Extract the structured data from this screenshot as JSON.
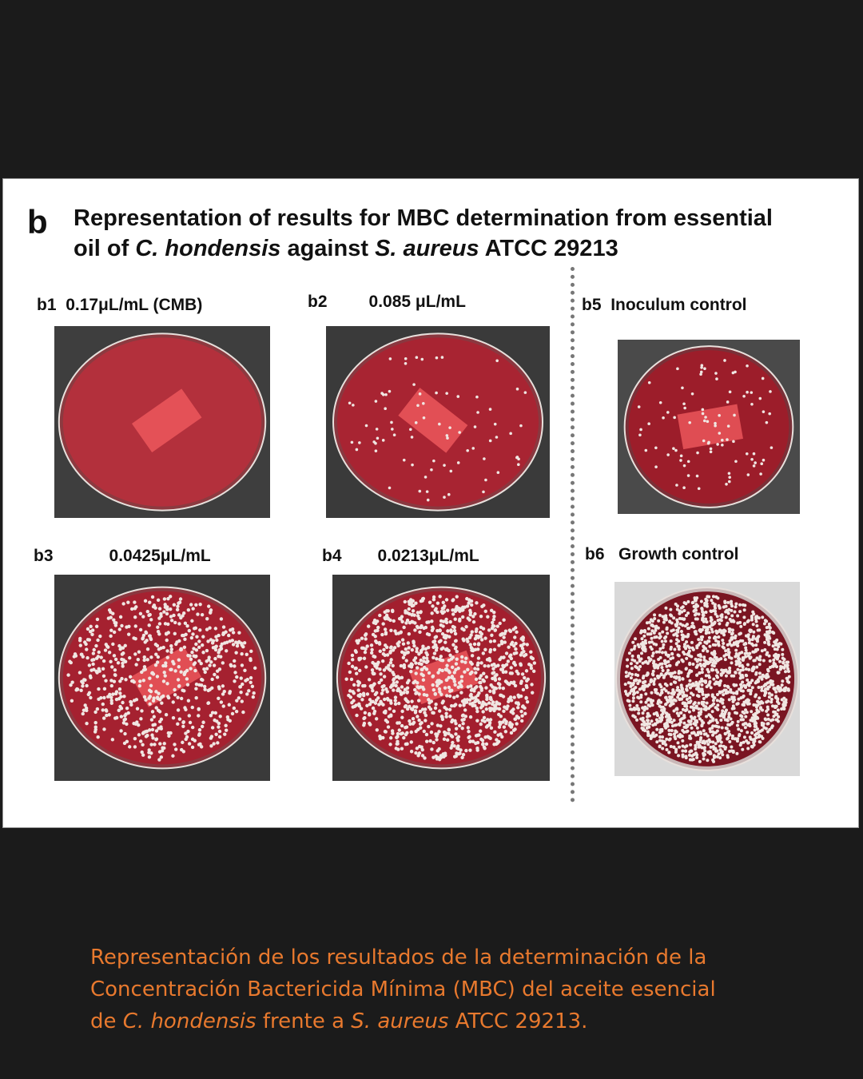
{
  "figure": {
    "panel_letter": "b",
    "title_line1": "Representation of results for MBC determination from essential",
    "title_line2_a": "oil of ",
    "title_line2_b": "C. hondensis",
    "title_line2_c": " against ",
    "title_line2_d": "S. aureus",
    "title_line2_e": " ATCC 29213",
    "panels": [
      {
        "id": "b1",
        "label": "0.17μL/mL (CMB)"
      },
      {
        "id": "b2",
        "label": "0.085 μL/mL"
      },
      {
        "id": "b3",
        "label": "0.0425μL/mL"
      },
      {
        "id": "b4",
        "label": "0.0213μL/mL"
      },
      {
        "id": "b5",
        "label": "Inoculum control"
      },
      {
        "id": "b6",
        "label": "Growth control"
      }
    ]
  },
  "caption": {
    "line1": "Representación de los resultados de la determinación de la",
    "line2": "Concentración Bactericida Mínima (MBC) del aceite esencial",
    "line3_a": "de ",
    "line3_b": "C. hondensis",
    "line3_c": " frente a ",
    "line3_d": "S. aureus",
    "line3_e": " ATCC 29213."
  },
  "colors": {
    "background": "#1b1b1b",
    "caption": "#e8792e",
    "agar": "#a8202c",
    "colony": "#f0e6e2"
  }
}
